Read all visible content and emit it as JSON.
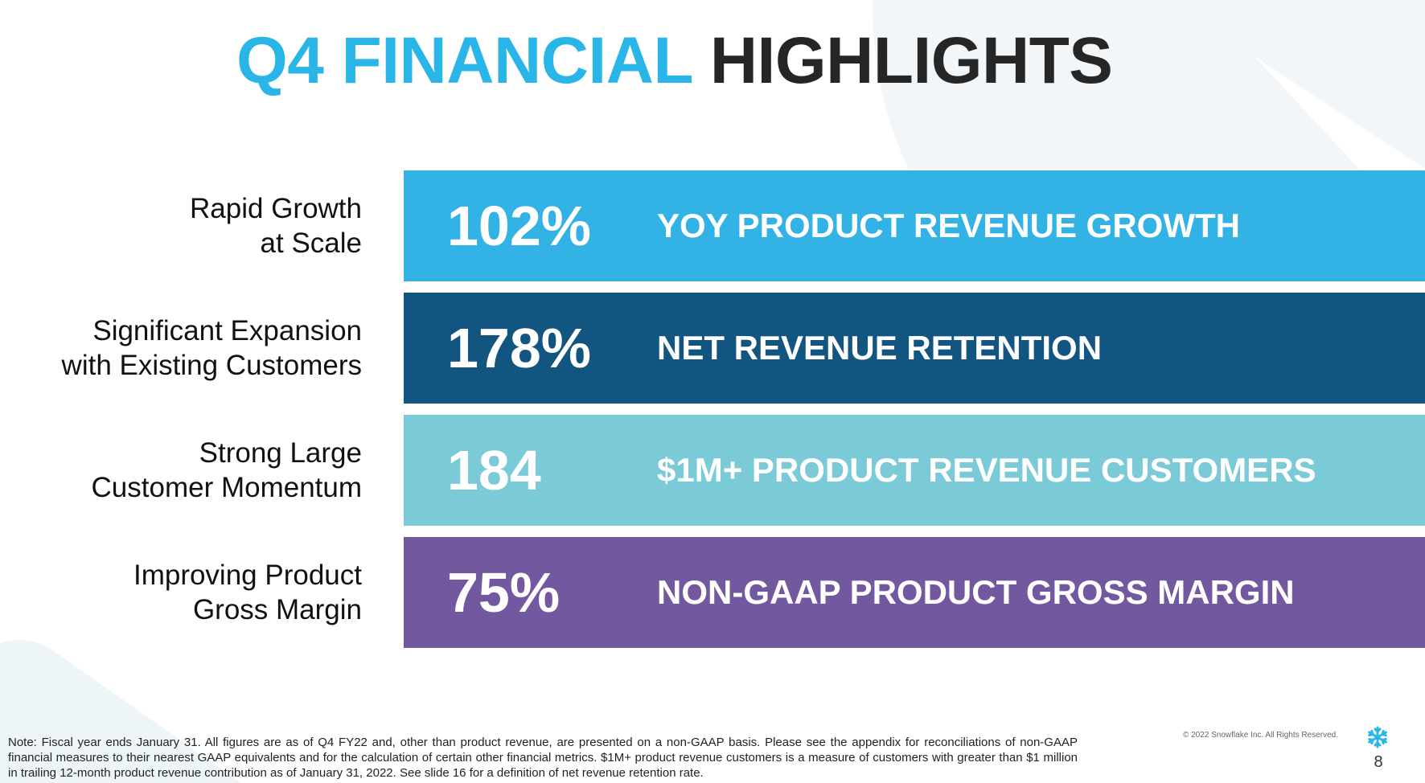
{
  "title": {
    "accent": "Q4 FINANCIAL",
    "main": "HIGHLIGHTS"
  },
  "rows": [
    {
      "label_line1": "Rapid Growth",
      "label_line2": "at Scale",
      "value": "102%",
      "description": "YOY PRODUCT REVENUE GROWTH",
      "color": "#33b2e5"
    },
    {
      "label_line1": "Significant Expansion",
      "label_line2": "with Existing Customers",
      "value": "178%",
      "description": "NET REVENUE RETENTION",
      "color": "#125580"
    },
    {
      "label_line1": "Strong Large",
      "label_line2": "Customer Momentum",
      "value": "184",
      "description": "$1M+ PRODUCT REVENUE CUSTOMERS",
      "color": "#7acbd7"
    },
    {
      "label_line1": "Improving Product",
      "label_line2": "Gross Margin",
      "value": "75%",
      "description": "NON-GAAP PRODUCT GROSS MARGIN",
      "color": "#72589e"
    }
  ],
  "footer": {
    "note": "Note:  Fiscal year ends January 31. All figures are as of Q4 FY22 and, other than product revenue, are presented on a non-GAAP basis. Please see the appendix for reconciliations of non-GAAP financial measures to their nearest GAAP equivalents and for the calculation of certain other financial metrics. $1M+ product revenue customers is a measure of customers with greater than $1 million in trailing 12-month product revenue contribution as of January 31, 2022. See slide 16 for a definition of net revenue retention rate.",
    "copyright": "© 2022 Snowflake Inc. All Rights Reserved.",
    "page_number": "8",
    "logo_icon": "snowflake-icon",
    "logo_color": "#29b5e8"
  },
  "colors": {
    "accent": "#29b5e8",
    "title_dark": "#262626",
    "background_shape": "#f2f6f8"
  }
}
